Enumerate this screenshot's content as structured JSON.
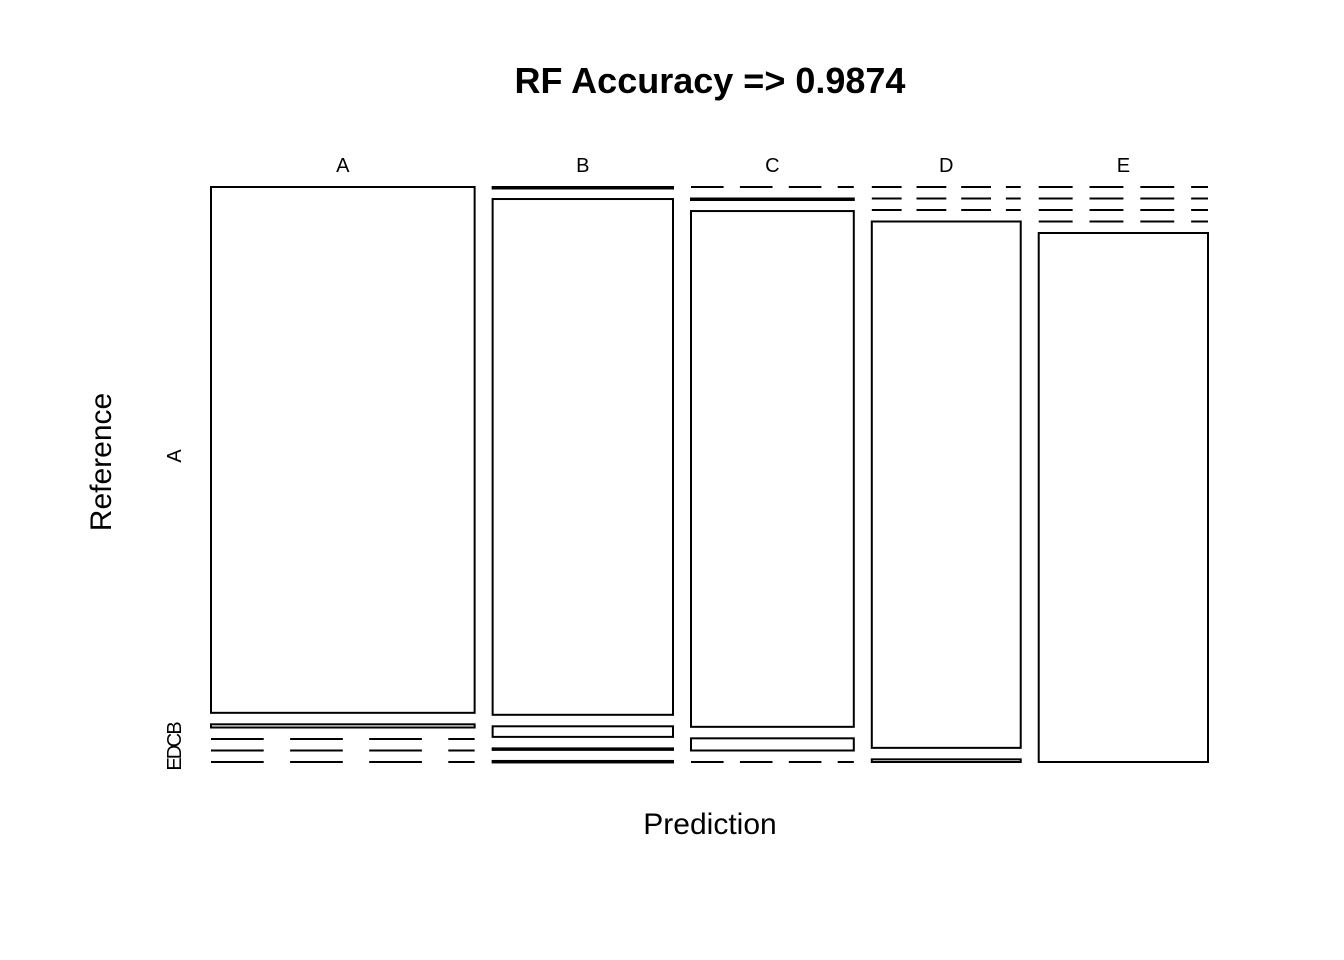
{
  "chart_data": {
    "type": "mosaic",
    "title": "RF Accuracy => 0.9874",
    "xlabel": "Prediction",
    "ylabel": "Reference",
    "x_categories": [
      "A",
      "B",
      "C",
      "D",
      "E"
    ],
    "y_categories": [
      "A",
      "B",
      "C",
      "D",
      "E"
    ],
    "y_tick_labels_shown": [
      "A",
      "B",
      "C",
      "D",
      "E"
    ],
    "x_column_proportions": [
      0.285,
      0.195,
      0.176,
      0.161,
      0.183
    ],
    "cell_proportions": {
      "A": {
        "A": 0.994,
        "B": 0.006,
        "C": 0.0,
        "D": 0.0,
        "E": 0.0
      },
      "B": {
        "A": 0.001,
        "B": 0.975,
        "C": 0.02,
        "D": 0.002,
        "E": 0.002
      },
      "C": {
        "A": 0.0,
        "B": 0.002,
        "C": 0.975,
        "D": 0.023,
        "E": 0.0
      },
      "D": {
        "A": 0.0,
        "B": 0.0,
        "C": 0.0,
        "D": 0.995,
        "E": 0.005
      },
      "E": {
        "A": 0.0,
        "B": 0.0,
        "C": 0.0,
        "D": 0.0,
        "E": 1.0
      }
    }
  }
}
